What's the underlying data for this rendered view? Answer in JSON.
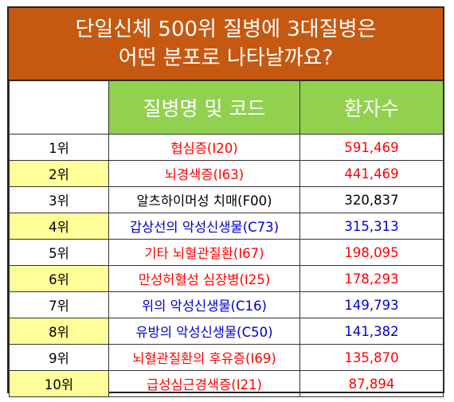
{
  "title": {
    "line1": "단일신체 500위 질병에 3대질병은",
    "line2": "어떤 분포로 나타날까요?"
  },
  "header": {
    "disease": "질병명 및 코드",
    "patients": "환자수"
  },
  "colors": {
    "title_bg": "#c65911",
    "header_bg": "#92d050",
    "rank_highlight": "#ffff99",
    "red": "#ff0000",
    "blue": "#0000cc",
    "black": "#000000"
  },
  "rows": [
    {
      "rank": "1위",
      "disease": "협심증(I20)",
      "patients": "591,469",
      "color": "red"
    },
    {
      "rank": "2위",
      "disease": "뇌경색증(I63)",
      "patients": "441,469",
      "color": "red"
    },
    {
      "rank": "3위",
      "disease": "알츠하이머성 치매(F00)",
      "patients": "320,837",
      "color": "black"
    },
    {
      "rank": "4위",
      "disease": "갑상선의 악성신생물(C73)",
      "patients": "315,313",
      "color": "blue"
    },
    {
      "rank": "5위",
      "disease": "기타 뇌혈관질환(I67)",
      "patients": "198,095",
      "color": "red"
    },
    {
      "rank": "6위",
      "disease": "만성허혈성 심장병(I25)",
      "patients": "178,293",
      "color": "red"
    },
    {
      "rank": "7위",
      "disease": "위의 악성신생물(C16)",
      "patients": "149,793",
      "color": "blue"
    },
    {
      "rank": "8위",
      "disease": "유방의 악성신생물(C50)",
      "patients": "141,382",
      "color": "blue"
    },
    {
      "rank": "9위",
      "disease": "뇌혈관질환의 후유증(I69)",
      "patients": "135,870",
      "color": "red"
    },
    {
      "rank": "10위",
      "disease": "급성심근경색증(I21)",
      "patients": "87,894",
      "color": "red"
    }
  ]
}
